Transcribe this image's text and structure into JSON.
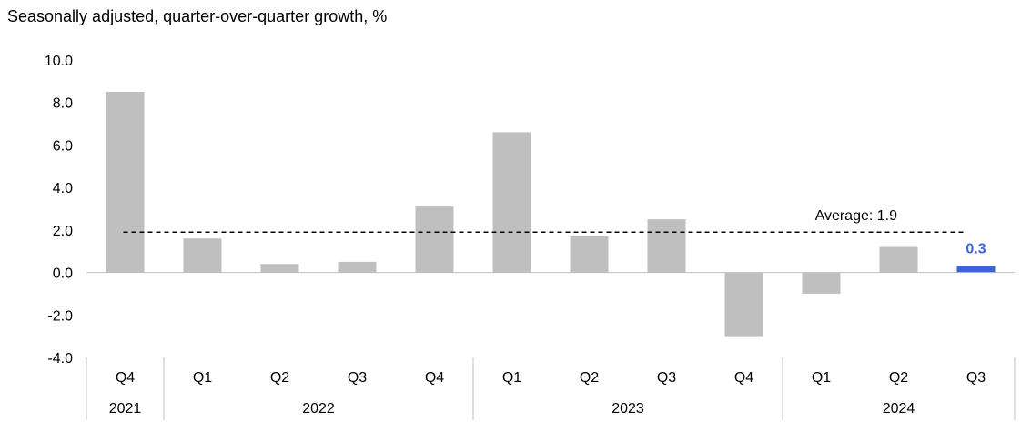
{
  "chart_data": {
    "type": "bar",
    "title": "Seasonally adjusted, quarter-over-quarter growth, %",
    "xlabel": "",
    "ylabel": "",
    "ylim": [
      -4.0,
      10.0
    ],
    "yticks": [
      "10.0",
      "8.0",
      "6.0",
      "4.0",
      "2.0",
      "0.0",
      "-2.0",
      "-4.0"
    ],
    "ytick_values": [
      10,
      8,
      6,
      4,
      2,
      0,
      -2,
      -4
    ],
    "categories": [
      "Q4",
      "Q1",
      "Q2",
      "Q3",
      "Q4",
      "Q1",
      "Q2",
      "Q3",
      "Q4",
      "Q1",
      "Q2",
      "Q3"
    ],
    "groups": [
      {
        "label": "2021",
        "count": 1
      },
      {
        "label": "2022",
        "count": 4
      },
      {
        "label": "2023",
        "count": 4
      },
      {
        "label": "2024",
        "count": 3
      }
    ],
    "values": [
      8.5,
      1.6,
      0.4,
      0.5,
      3.1,
      6.6,
      1.7,
      2.5,
      -3.0,
      -1.0,
      1.2,
      0.3
    ],
    "highlight_index": 11,
    "highlight_label": "0.3",
    "average": {
      "value": 1.9,
      "label": "Average: 1.9"
    },
    "grid": false,
    "colors": {
      "bar": "#bfbfbf",
      "highlight": "#3a64d8",
      "average_line": "#000000",
      "axis": "#bfbfbf",
      "text": "#000000"
    }
  }
}
